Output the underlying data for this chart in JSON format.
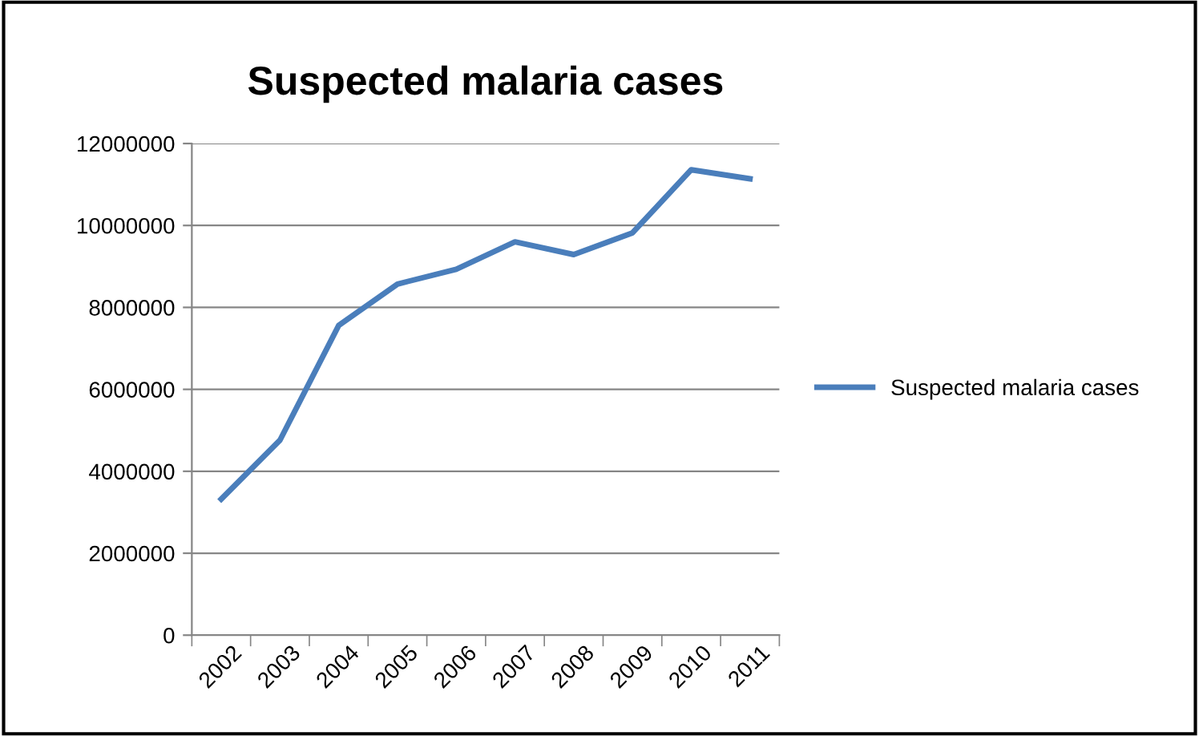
{
  "chart_data": {
    "type": "line",
    "title": "Suspected malaria cases",
    "categories": [
      "2002",
      "2003",
      "2004",
      "2005",
      "2006",
      "2007",
      "2008",
      "2009",
      "2010",
      "2011"
    ],
    "series": [
      {
        "name": "Suspected malaria cases",
        "color": "#4a7ebb",
        "values": [
          3320000,
          4760000,
          7560000,
          8570000,
          8930000,
          9600000,
          9290000,
          9820000,
          11360000,
          11140000
        ]
      }
    ],
    "ylim": [
      0,
      12000000
    ],
    "yticks": [
      0,
      2000000,
      4000000,
      6000000,
      8000000,
      10000000,
      12000000
    ],
    "grid": "y",
    "legend": "right",
    "marker": "none",
    "line_style": "solid"
  }
}
